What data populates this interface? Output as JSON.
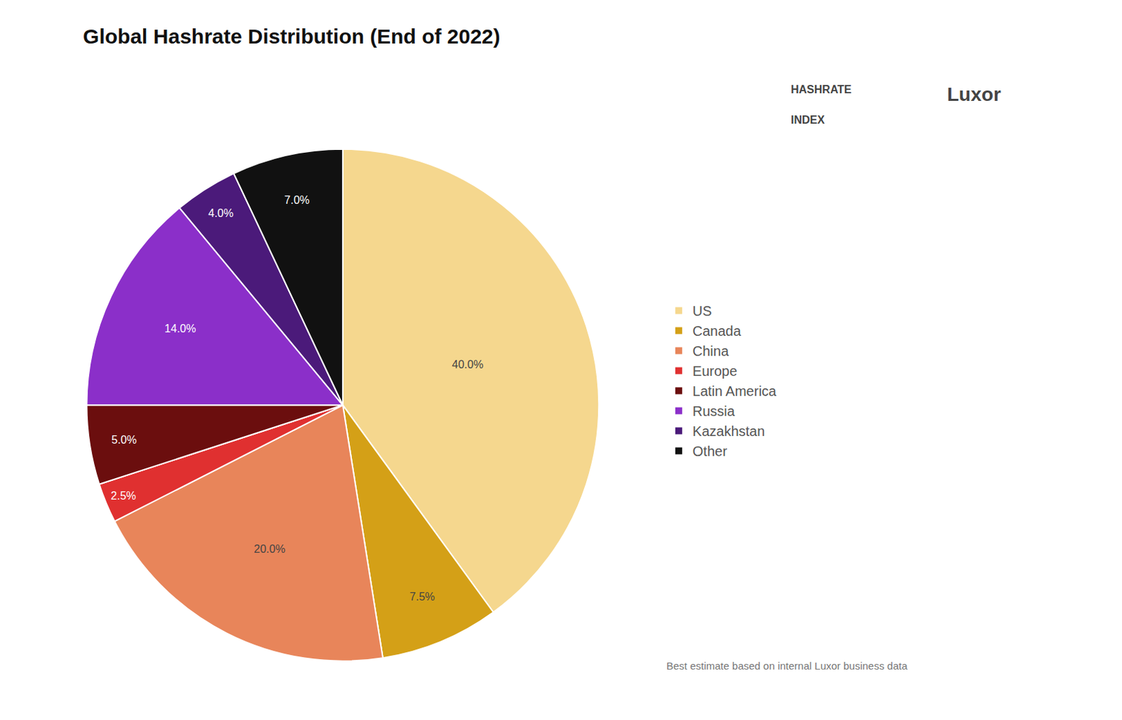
{
  "chart_data": {
    "type": "pie",
    "title": "Global Hashrate Distribution (End of 2022)",
    "subtitle": "Best estimate based on internal Luxor business data",
    "categories": [
      "US",
      "Canada",
      "China",
      "Europe",
      "Latin America",
      "Russia",
      "Kazakhstan",
      "Other"
    ],
    "values": [
      40.0,
      7.5,
      20.0,
      2.5,
      5.0,
      14.0,
      4.0,
      7.0
    ],
    "value_labels": [
      "40.0%",
      "7.5%",
      "20.0%",
      "2.5%",
      "5.0%",
      "14.0%",
      "4.0%",
      "7.0%"
    ],
    "colors": [
      "#F5D78E",
      "#D4A017",
      "#E8855A",
      "#E03030",
      "#6B0E0E",
      "#8B2FC9",
      "#4B1A7A",
      "#111111"
    ],
    "data_labels": true,
    "legend": "right",
    "annotations": [
      "HASHRATE",
      "INDEX",
      "Luxor"
    ]
  }
}
